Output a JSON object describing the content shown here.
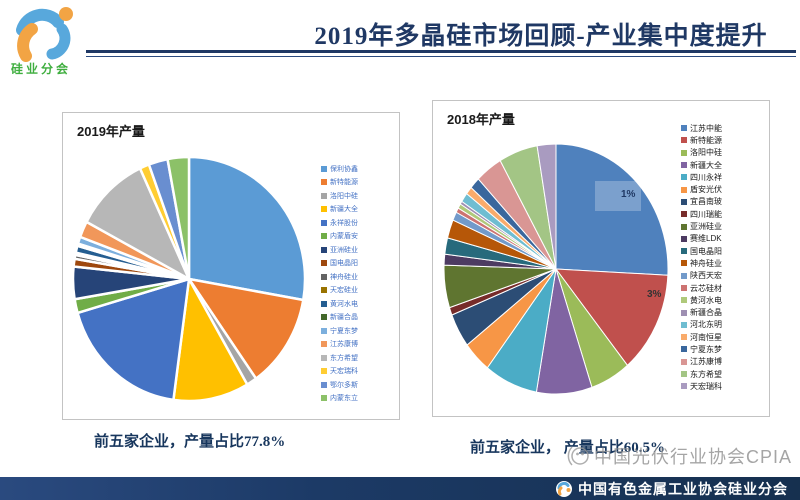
{
  "header": {
    "title": "2019年多晶硅市场回顾-产业集中度提升",
    "logo_text": "硅业分会"
  },
  "left_chart": {
    "title": "2019年产量",
    "caption": "前五家企业，产量占比77.8%"
  },
  "right_chart": {
    "title": "2018年产量",
    "caption": "前五家企业， 产量占比60.5%"
  },
  "watermark": {
    "text": "中国光伏行业协会CPIA"
  },
  "footer": {
    "text": "中国有色金属工业协会硅业分会"
  },
  "chart_data": [
    {
      "type": "pie",
      "title": "2019年产量",
      "legend_position": "right",
      "legend_text_color": "#4472C4",
      "note": "前五家企业，产量占比77.8%",
      "categories": [
        "保利协鑫",
        "新特能源",
        "洛阳中硅",
        "新疆大全",
        "永祥股份",
        "内蒙盾安",
        "亚洲硅业",
        "国电晶阳",
        "神舟硅业",
        "天宏硅业",
        "黄河水电",
        "新疆合晶",
        "宁夏东梦",
        "江苏康博",
        "东方希望",
        "天宏瑞科",
        "鄂尔多斯",
        "内蒙东立"
      ],
      "values": [
        27.2,
        12.2,
        1.4,
        10.3,
        18.0,
        1.8,
        4.2,
        1.0,
        0.5,
        0.3,
        0.9,
        0.3,
        0.9,
        2.1,
        10.1,
        1.3,
        2.6,
        2.9
      ],
      "colors": [
        "#5B9BD5",
        "#ED7D31",
        "#A5A5A5",
        "#FFC000",
        "#4472C4",
        "#70AD47",
        "#264478",
        "#9E480E",
        "#636363",
        "#997300",
        "#255E91",
        "#43682B",
        "#7CAFDD",
        "#F1975A",
        "#B7B7B7",
        "#FFCD33",
        "#698ED0",
        "#8CC168"
      ]
    },
    {
      "type": "pie",
      "title": "2018年产量",
      "legend_position": "right",
      "legend_text_color": "#1a1a1a",
      "note": "前五家企业， 产量占比60.5%",
      "categories": [
        "江苏中能",
        "新特能源",
        "洛阳中硅",
        "新疆大全",
        "四川永祥",
        "盾安光伏",
        "宜昌南玻",
        "四川瑞能",
        "亚洲硅业",
        "赛维LDK",
        "国电晶阳",
        "神舟硅业",
        "陕西天宏",
        "云芯硅材",
        "黄河水电",
        "新疆合晶",
        "河北东明",
        "河南恒星",
        "宁夏东梦",
        "江苏康博",
        "东方希望",
        "天宏瑞科"
      ],
      "values": [
        25.8,
        13.2,
        5.8,
        8.0,
        7.7,
        4.1,
        4.4,
        1.0,
        5.5,
        1.4,
        2.1,
        2.4,
        1.1,
        0.6,
        0.6,
        0.4,
        1.2,
        1.0,
        1.5,
        3.9,
        5.6,
        2.7
      ],
      "colors": [
        "#4F81BD",
        "#C0504D",
        "#9BBB59",
        "#8064A2",
        "#4BACC6",
        "#F79646",
        "#2C4D75",
        "#772C2A",
        "#5F7530",
        "#4D3B62",
        "#276A7C",
        "#B65708",
        "#729ACA",
        "#CD7371",
        "#AFC97A",
        "#9E8FB2",
        "#6FBDD1",
        "#F9AB6B",
        "#3A679D",
        "#D99694",
        "#A3C585",
        "#A99BC0"
      ],
      "data_labels": [
        {
          "text": "1%"
        },
        {
          "text": "3%"
        }
      ]
    }
  ]
}
